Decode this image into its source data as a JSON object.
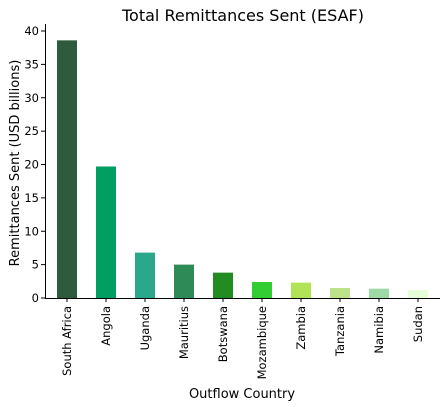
{
  "chart_data": {
    "type": "bar",
    "title": "Total Remittances Sent (ESAF)",
    "xlabel": "Outflow Country",
    "ylabel": "Remittances Sent (USD billions)",
    "categories": [
      "South Africa",
      "Angola",
      "Uganda",
      "Mauritius",
      "Botswana",
      "Mozambique",
      "Zambia",
      "Tanzania",
      "Namibia",
      "Sudan"
    ],
    "values": [
      38.6,
      19.7,
      6.8,
      5.0,
      3.8,
      2.4,
      2.3,
      1.5,
      1.4,
      1.2
    ],
    "colors": [
      "#2e5b3b",
      "#009e61",
      "#2aa889",
      "#2e8b57",
      "#228b22",
      "#32cd32",
      "#b0e456",
      "#bde38a",
      "#9fd9a5",
      "#e5ffd9"
    ],
    "ylim": [
      0,
      40
    ],
    "yticks": [
      0,
      5,
      10,
      15,
      20,
      25,
      30,
      35,
      40
    ],
    "grid": false,
    "legend": "none"
  }
}
